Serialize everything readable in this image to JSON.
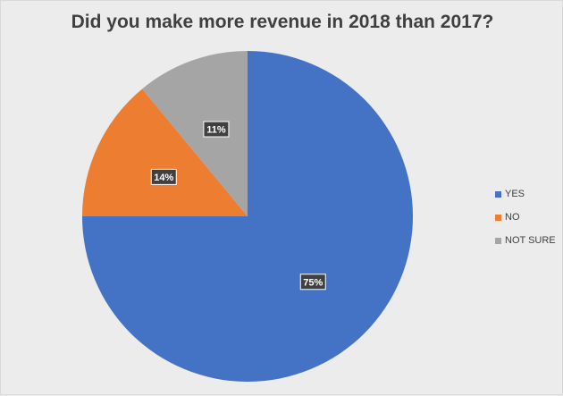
{
  "chart_data": {
    "type": "pie",
    "title": "Did you make more revenue in 2018 than 2017?",
    "categories": [
      "YES",
      "NO",
      "NOT SURE"
    ],
    "values": [
      75,
      14,
      11
    ],
    "data_labels": [
      "75%",
      "14%",
      "11%"
    ],
    "colors": [
      "#4472C4",
      "#ED7D31",
      "#A5A5A5"
    ],
    "legend_position": "right",
    "start_angle_deg": 0,
    "direction": "clockwise"
  }
}
